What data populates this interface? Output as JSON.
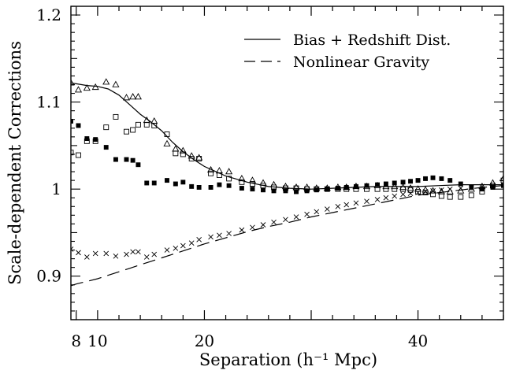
{
  "chart_data": {
    "type": "scatter",
    "xlabel": "Separation (h⁻¹ Mpc)",
    "ylabel": "Scale-dependent Corrections",
    "xlim": [
      7.5,
      48
    ],
    "ylim": [
      0.85,
      1.21
    ],
    "x_ticks_labeled": [
      "8",
      "10",
      "20",
      "40"
    ],
    "y_ticks_labeled": [
      "0.9",
      "1",
      "1.1",
      "1.2"
    ],
    "legend_position": "top-right",
    "legend": [
      {
        "label": "Bias + Redshift Dist.",
        "style": "solid"
      },
      {
        "label": "Nonlinear Gravity",
        "style": "dashed"
      }
    ],
    "lines": [
      {
        "style": "solid",
        "x": [
          7.5,
          8,
          9,
          10,
          11,
          12,
          13,
          14,
          15,
          16,
          17,
          18,
          19,
          20,
          22,
          24,
          26,
          28,
          30,
          32,
          34,
          36,
          38,
          40,
          42,
          44,
          46,
          48
        ],
        "y": [
          1.122,
          1.121,
          1.119,
          1.118,
          1.115,
          1.108,
          1.097,
          1.086,
          1.077,
          1.067,
          1.054,
          1.043,
          1.034,
          1.026,
          1.015,
          1.008,
          1.003,
          1.001,
          1.0,
          1.001,
          1.002,
          1.003,
          1.003,
          1.003,
          1.004,
          1.005,
          1.005,
          1.005
        ]
      },
      {
        "style": "dashed",
        "x": [
          7.5,
          8,
          9,
          10,
          11,
          12,
          13,
          14,
          15,
          16,
          17,
          18,
          19,
          20,
          22,
          24,
          26,
          28,
          30,
          32,
          34,
          36,
          38,
          40,
          42,
          44,
          46,
          48
        ],
        "y": [
          0.889,
          0.891,
          0.894,
          0.897,
          0.901,
          0.905,
          0.909,
          0.913,
          0.917,
          0.921,
          0.925,
          0.929,
          0.933,
          0.937,
          0.944,
          0.951,
          0.957,
          0.962,
          0.968,
          0.973,
          0.978,
          0.983,
          0.988,
          0.993,
          0.996,
          0.999,
          1.002,
          1.004
        ]
      }
    ],
    "series": [
      {
        "marker": "triangle",
        "x": [
          7.5,
          8.2,
          9,
          9.8,
          10.8,
          11.7,
          12.7,
          13.3,
          13.8,
          14.6,
          15.3,
          16.5,
          17.3,
          18.0,
          18.8,
          19.5,
          20.6,
          21.4,
          22.3,
          23.5,
          24.5,
          25.5,
          26.5,
          27.6,
          28.6,
          29.6,
          30.5,
          31.5,
          32.5,
          33.3,
          34.2,
          35.2,
          36.2,
          37.0,
          37.8,
          38.6,
          39.3,
          40.0,
          40.7,
          41.4,
          42.2,
          43.0,
          44.0,
          45.0,
          46.0,
          47.0,
          48.0
        ],
        "y": [
          1.122,
          1.114,
          1.116,
          1.117,
          1.123,
          1.12,
          1.105,
          1.106,
          1.106,
          1.079,
          1.078,
          1.052,
          1.046,
          1.044,
          1.038,
          1.036,
          1.022,
          1.021,
          1.02,
          1.012,
          1.01,
          1.007,
          1.005,
          1.003,
          1.002,
          1.002,
          1.001,
          1.001,
          1.002,
          1.002,
          1.003,
          1.003,
          1.004,
          1.003,
          1.003,
          1.002,
          1.001,
          1.0,
          0.999,
          0.998,
          0.997,
          0.997,
          0.998,
          1.0,
          1.003,
          1.007,
          1.012
        ]
      },
      {
        "marker": "square",
        "x": [
          7.5,
          8.2,
          9,
          9.8,
          10.8,
          11.7,
          12.7,
          13.3,
          13.8,
          14.6,
          15.3,
          16.5,
          17.3,
          18.0,
          18.8,
          19.5,
          20.6,
          21.4,
          22.3,
          23.5,
          24.5,
          25.5,
          26.5,
          27.6,
          28.6,
          29.6,
          30.5,
          31.5,
          32.5,
          33.3,
          34.2,
          35.2,
          36.2,
          37.0,
          37.8,
          38.6,
          39.3,
          40.0,
          40.7,
          41.4,
          42.2,
          43.0,
          44.0,
          45.0,
          46.0,
          47.0,
          48.0
        ],
        "y": [
          1.042,
          1.039,
          1.055,
          1.055,
          1.071,
          1.083,
          1.066,
          1.068,
          1.074,
          1.074,
          1.073,
          1.063,
          1.041,
          1.04,
          1.035,
          1.035,
          1.018,
          1.016,
          1.012,
          1.008,
          1.006,
          1.004,
          1.002,
          1.001,
          1.001,
          1.0,
          1.0,
          1.0,
          1.0,
          1.0,
          1.0,
          1.0,
          1.0,
          1.0,
          1.0,
          1.0,
          0.999,
          0.997,
          0.996,
          0.994,
          0.992,
          0.991,
          0.991,
          0.993,
          0.997,
          1.004,
          1.01
        ]
      },
      {
        "marker": "filled-square",
        "x": [
          7.5,
          8.2,
          9,
          9.8,
          10.8,
          11.7,
          12.7,
          13.3,
          13.8,
          14.6,
          15.3,
          16.5,
          17.3,
          18.0,
          18.8,
          19.5,
          20.6,
          21.4,
          22.3,
          23.5,
          24.5,
          25.5,
          26.5,
          27.6,
          28.6,
          29.6,
          30.5,
          31.5,
          32.5,
          33.3,
          34.2,
          35.2,
          36.2,
          37.0,
          37.8,
          38.6,
          39.3,
          40.0,
          40.7,
          41.4,
          42.2,
          43.0,
          44.0,
          45.0,
          46.0,
          47.0,
          48.0
        ],
        "y": [
          1.078,
          1.073,
          1.058,
          1.057,
          1.048,
          1.034,
          1.034,
          1.033,
          1.028,
          1.007,
          1.007,
          1.01,
          1.006,
          1.008,
          1.003,
          1.002,
          1.002,
          1.005,
          1.004,
          1.001,
          1.0,
          0.999,
          0.998,
          0.998,
          0.997,
          0.998,
          0.999,
          1.0,
          1.001,
          1.002,
          1.003,
          1.004,
          1.005,
          1.006,
          1.007,
          1.008,
          1.009,
          1.01,
          1.012,
          1.013,
          1.012,
          1.01,
          1.006,
          1.002,
          1.0,
          1.002,
          1.004
        ]
      },
      {
        "marker": "cross",
        "x": [
          7.5,
          8.2,
          9,
          9.8,
          10.8,
          11.7,
          12.7,
          13.3,
          13.8,
          14.6,
          15.3,
          16.5,
          17.3,
          18.0,
          18.8,
          19.5,
          20.6,
          21.4,
          22.3,
          23.5,
          24.5,
          25.5,
          26.5,
          27.6,
          28.6,
          29.6,
          30.5,
          31.5,
          32.5,
          33.3,
          34.2,
          35.2,
          36.2,
          37.0,
          37.8,
          38.6,
          39.3,
          40.0,
          40.7,
          41.4,
          42.2,
          43.0,
          44.0,
          45.0,
          46.0,
          47.0,
          48.0
        ],
        "y": [
          0.931,
          0.927,
          0.922,
          0.926,
          0.926,
          0.923,
          0.925,
          0.928,
          0.928,
          0.922,
          0.925,
          0.93,
          0.932,
          0.935,
          0.938,
          0.942,
          0.945,
          0.947,
          0.949,
          0.953,
          0.956,
          0.959,
          0.962,
          0.965,
          0.968,
          0.971,
          0.974,
          0.977,
          0.98,
          0.982,
          0.984,
          0.986,
          0.988,
          0.99,
          0.992,
          0.994,
          0.995,
          0.996,
          0.997,
          0.998,
          0.999,
          1.0,
          1.001,
          1.002,
          1.003,
          1.004,
          1.005
        ]
      }
    ]
  }
}
